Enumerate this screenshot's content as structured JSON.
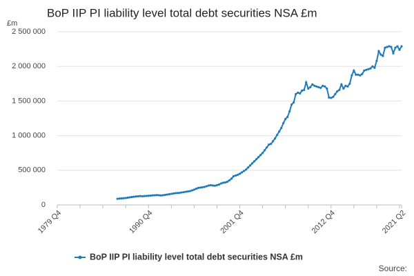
{
  "chart_data": {
    "type": "line",
    "title": "BoP IIP PI liability level total debt securities NSA £m",
    "y_label": "£m",
    "source": "Source:",
    "categories": [
      "1979 Q4",
      null,
      null,
      null,
      null,
      null,
      null,
      null,
      null,
      null,
      null,
      null,
      null,
      null,
      null,
      null,
      null,
      null,
      null,
      null,
      null,
      null,
      null,
      null,
      null,
      null,
      null,
      null,
      null,
      null,
      null,
      null,
      null,
      null,
      null,
      null,
      null,
      null,
      null,
      null,
      null,
      null,
      null,
      null,
      "1990 Q4",
      null,
      null,
      null,
      null,
      null,
      null,
      null,
      null,
      null,
      null,
      null,
      null,
      null,
      null,
      null,
      null,
      null,
      null,
      null,
      null,
      null,
      null,
      null,
      null,
      null,
      null,
      null,
      null,
      null,
      null,
      null,
      null,
      null,
      null,
      null,
      null,
      null,
      null,
      null,
      null,
      null,
      null,
      null,
      "2001 Q4",
      null,
      null,
      null,
      null,
      null,
      null,
      null,
      null,
      null,
      null,
      null,
      null,
      null,
      null,
      null,
      null,
      null,
      null,
      null,
      null,
      null,
      null,
      null,
      null,
      null,
      null,
      null,
      null,
      null,
      null,
      null,
      null,
      null,
      null,
      null,
      null,
      null,
      null,
      null,
      null,
      null,
      null,
      null,
      "2012 Q4",
      null,
      null,
      null,
      null,
      null,
      null,
      null,
      null,
      null,
      null,
      null,
      null,
      null,
      null,
      null,
      null,
      null,
      null,
      null,
      null,
      null,
      null,
      null,
      null,
      null,
      null,
      null,
      null,
      null,
      null,
      null,
      null,
      null,
      "2021 Q2"
    ],
    "series": [
      {
        "name": "BoP IIP PI liability level total debt securities NSA £m",
        "color": "#1f7ab8",
        "values": [
          null,
          null,
          null,
          null,
          null,
          null,
          null,
          null,
          null,
          null,
          null,
          null,
          null,
          null,
          null,
          null,
          null,
          null,
          null,
          null,
          null,
          null,
          null,
          null,
          null,
          null,
          null,
          null,
          null,
          88000,
          92000,
          95000,
          97000,
          100000,
          105000,
          110000,
          115000,
          118000,
          122000,
          125000,
          128000,
          125000,
          128000,
          130000,
          132000,
          135000,
          138000,
          140000,
          142000,
          140000,
          137000,
          140000,
          145000,
          150000,
          155000,
          160000,
          165000,
          170000,
          172000,
          175000,
          180000,
          185000,
          190000,
          195000,
          200000,
          210000,
          220000,
          235000,
          245000,
          250000,
          255000,
          260000,
          270000,
          280000,
          285000,
          280000,
          278000,
          285000,
          295000,
          310000,
          320000,
          325000,
          335000,
          355000,
          380000,
          415000,
          425000,
          435000,
          450000,
          470000,
          490000,
          510000,
          540000,
          570000,
          600000,
          630000,
          660000,
          690000,
          720000,
          750000,
          790000,
          830000,
          870000,
          880000,
          920000,
          960000,
          1010000,
          1060000,
          1110000,
          1180000,
          1240000,
          1270000,
          1350000,
          1450000,
          1480000,
          1600000,
          1620000,
          1610000,
          1650000,
          1660000,
          1770000,
          1680000,
          1700000,
          1740000,
          1720000,
          1710000,
          1700000,
          1690000,
          1720000,
          1710000,
          1680000,
          1550000,
          1545000,
          1560000,
          1600000,
          1640000,
          1660000,
          1740000,
          1680000,
          1720000,
          1710000,
          1750000,
          1870000,
          1940000,
          1880000,
          1880000,
          1870000,
          1890000,
          1940000,
          1950000,
          1960000,
          1970000,
          2000000,
          1980000,
          2080000,
          2220000,
          2170000,
          2150000,
          2270000,
          2280000,
          2290000,
          2280000,
          2190000,
          2270000,
          2290000,
          2240000,
          2290000
        ]
      }
    ],
    "ylim": [
      0,
      2500000
    ],
    "yticks": [
      0,
      {
        "value": 500000,
        "label": "500 000"
      },
      {
        "value": 1000000,
        "label": "1 000 000"
      },
      {
        "value": 1500000,
        "label": "1 500 000"
      },
      {
        "value": 2000000,
        "label": "2 000 000"
      },
      {
        "value": 2500000,
        "label": "2 500 000"
      }
    ],
    "grid": true,
    "legend": "bottom"
  }
}
